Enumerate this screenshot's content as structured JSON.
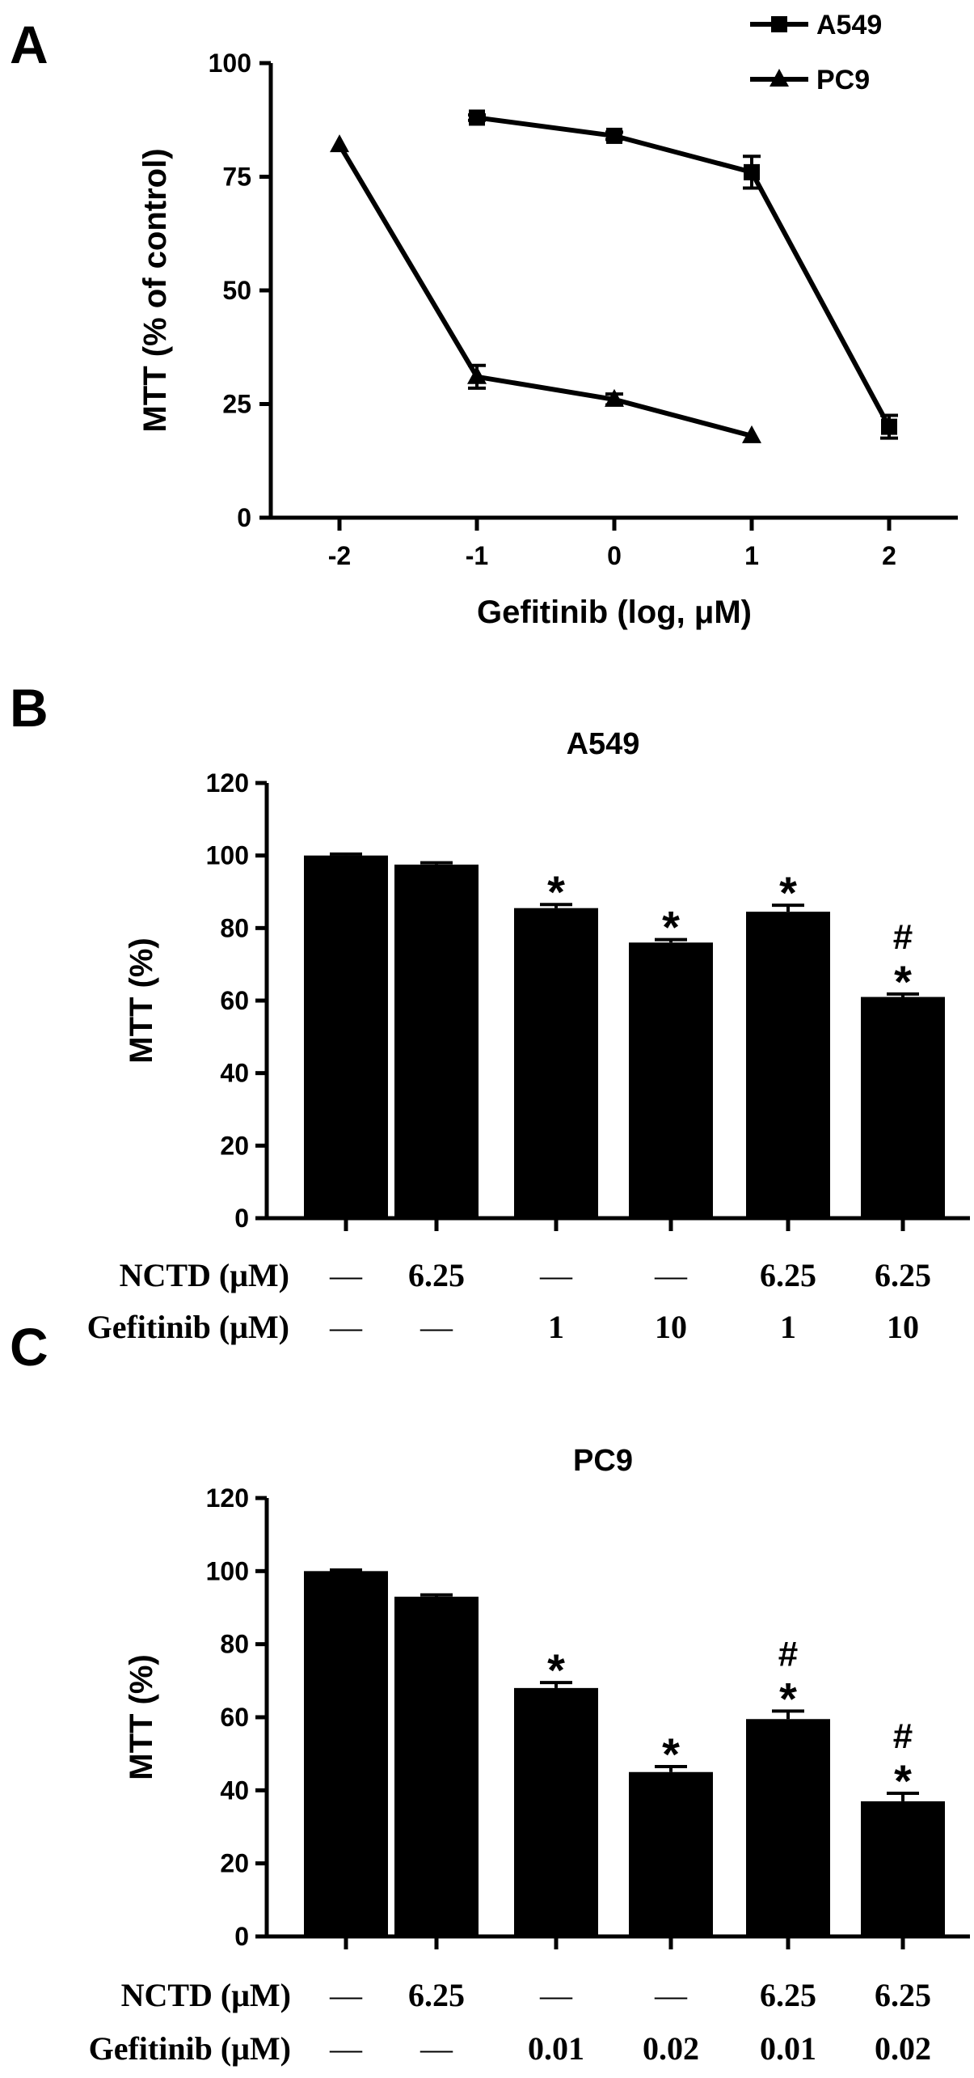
{
  "panels": {
    "A": {
      "letter": "A"
    },
    "B": {
      "letter": "B"
    },
    "C": {
      "letter": "C"
    }
  },
  "chart_data": [
    {
      "type": "line",
      "panel": "A",
      "title": "",
      "xlabel": "Gefitinib (log, μM)",
      "ylabel": "MTT  (% of control)",
      "xlim": [
        -2.5,
        2.5
      ],
      "ylim": [
        0,
        100
      ],
      "xticks": [
        -2,
        -1,
        0,
        1,
        2
      ],
      "xtick_labels": [
        "-2",
        "-1",
        "0",
        "1",
        "2"
      ],
      "yticks": [
        0,
        25,
        50,
        75,
        100
      ],
      "ytick_labels": [
        "0",
        "25",
        "50",
        "75",
        "100"
      ],
      "grid": false,
      "legend_position": "top-right",
      "series": [
        {
          "name": "A549",
          "marker": "square",
          "x": [
            -1,
            0,
            1,
            2
          ],
          "y": [
            88,
            84,
            76,
            20
          ],
          "err": [
            0.6,
            0.8,
            3.5,
            2.5
          ]
        },
        {
          "name": "PC9",
          "marker": "triangle",
          "x": [
            -2,
            -1,
            0,
            1
          ],
          "y": [
            82,
            31,
            26,
            18
          ],
          "err": [
            0.5,
            2.5,
            1.2,
            0.5
          ]
        }
      ]
    },
    {
      "type": "bar",
      "panel": "B",
      "title": "A549",
      "xlabel": "",
      "ylabel": "MTT (%)",
      "ylim": [
        0,
        120
      ],
      "yticks": [
        0,
        20,
        40,
        60,
        80,
        100,
        120
      ],
      "ytick_labels": [
        "0",
        "20",
        "40",
        "60",
        "80",
        "100",
        "120"
      ],
      "grid": false,
      "values": [
        100,
        97.5,
        85.5,
        76,
        84.5,
        61
      ],
      "errors": [
        0.4,
        0.5,
        1,
        0.8,
        1.8,
        0.8
      ],
      "annotations": [
        [],
        [],
        [
          "*"
        ],
        [
          "*"
        ],
        [
          "*"
        ],
        [
          "#",
          "*"
        ]
      ],
      "row_labels": [
        "NCTD (μM)",
        "Gefitinib (μM)"
      ],
      "rows": [
        [
          "—",
          "6.25",
          "—",
          "—",
          "6.25",
          "6.25"
        ],
        [
          "—",
          "—",
          "1",
          "10",
          "1",
          "10"
        ]
      ]
    },
    {
      "type": "bar",
      "panel": "C",
      "title": "PC9",
      "xlabel": "",
      "ylabel": "MTT (%)",
      "ylim": [
        0,
        120
      ],
      "yticks": [
        0,
        20,
        40,
        60,
        80,
        100,
        120
      ],
      "ytick_labels": [
        "0",
        "20",
        "40",
        "60",
        "80",
        "100",
        "120"
      ],
      "grid": false,
      "values": [
        100,
        93,
        68,
        45,
        59.5,
        37
      ],
      "errors": [
        0.3,
        0.5,
        1.5,
        1.5,
        2.2,
        2.2
      ],
      "annotations": [
        [],
        [],
        [
          "*"
        ],
        [
          "*"
        ],
        [
          "#",
          "*"
        ],
        [
          "#",
          "*"
        ]
      ],
      "row_labels": [
        "NCTD  (μM)",
        "Gefitinib  (μM)"
      ],
      "rows": [
        [
          "—",
          "6.25",
          "—",
          "—",
          "6.25",
          "6.25"
        ],
        [
          "—",
          "—",
          "0.01",
          "0.02",
          "0.01",
          "0.02"
        ]
      ]
    }
  ]
}
